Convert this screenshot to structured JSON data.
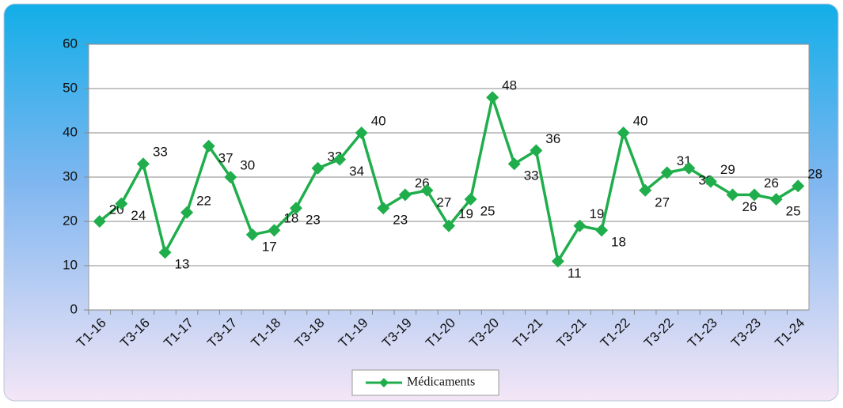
{
  "chart_data": {
    "type": "line",
    "categories": [
      "T1-16",
      null,
      "T3-16",
      null,
      "T1-17",
      null,
      "T3-17",
      null,
      "T1-18",
      null,
      "T3-18",
      null,
      "T1-19",
      null,
      "T3-19",
      null,
      "T1-20",
      null,
      "T3-20",
      null,
      "T1-21",
      null,
      "T3-21",
      null,
      "T1-22",
      null,
      "T3-22",
      null,
      "T1-23",
      null,
      "T3-23",
      null,
      "T1-24"
    ],
    "series": [
      {
        "name": "Médicaments",
        "color": "#1fae4b",
        "values": [
          20,
          24,
          33,
          13,
          22,
          37,
          30,
          17,
          18,
          23,
          32,
          34,
          40,
          23,
          26,
          27,
          19,
          25,
          48,
          33,
          36,
          11,
          19,
          18,
          40,
          27,
          31,
          32,
          29,
          26,
          26,
          25,
          28
        ]
      }
    ],
    "ylim": [
      0,
      60
    ],
    "yticks": [
      0,
      10,
      20,
      30,
      40,
      50,
      60
    ],
    "grid": true,
    "legend": "bottom"
  }
}
